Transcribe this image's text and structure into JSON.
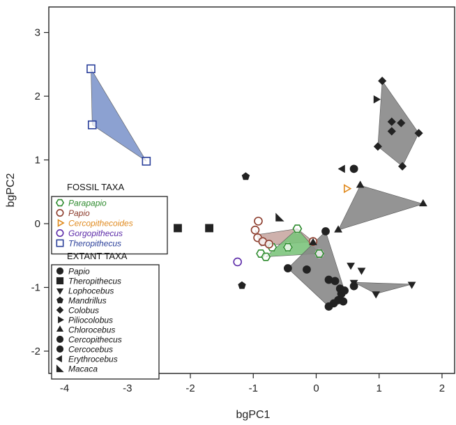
{
  "chart_data": {
    "type": "scatter",
    "xlabel": "bgPC1",
    "ylabel": "bgPC2",
    "xlim": [
      -4.25,
      2.2
    ],
    "ylim": [
      -2.35,
      3.4
    ],
    "xticks": [
      -4,
      -3,
      -2,
      -1,
      0,
      1,
      2
    ],
    "yticks": [
      -2,
      -1,
      0,
      1,
      2,
      3
    ],
    "grid": false,
    "legend_placement": "left",
    "legends": [
      {
        "title": "FOSSIL TAXA",
        "entries": [
          {
            "name": "Parapapio",
            "marker": "hexagon-open",
            "color": "#2e8b2e"
          },
          {
            "name": "Papio",
            "marker": "circle-open",
            "color": "#8b3a2a"
          },
          {
            "name": "Cercopithecoides",
            "marker": "triangle-right-open",
            "color": "#e08a1e"
          },
          {
            "name": "Gorgopithecus",
            "marker": "circle-open",
            "color": "#5b2aa8"
          },
          {
            "name": "Theropithecus",
            "marker": "square-open",
            "color": "#2a3f9a"
          }
        ]
      },
      {
        "title": "EXTANT TAXA",
        "entries": [
          {
            "name": "Papio",
            "marker": "circle",
            "color": "#222222"
          },
          {
            "name": "Theropithecus",
            "marker": "square",
            "color": "#222222"
          },
          {
            "name": "Lophocebus",
            "marker": "triangle-down",
            "color": "#222222"
          },
          {
            "name": "Mandrillus",
            "marker": "pentagon",
            "color": "#222222"
          },
          {
            "name": "Colobus",
            "marker": "diamond",
            "color": "#222222"
          },
          {
            "name": "Piliocolobus",
            "marker": "triangle-right",
            "color": "#222222"
          },
          {
            "name": "Chlorocebus",
            "marker": "triangle-up",
            "color": "#222222"
          },
          {
            "name": "Cercopithecus",
            "marker": "circle",
            "color": "#222222"
          },
          {
            "name": "Cercocebus",
            "marker": "circle",
            "color": "#222222"
          },
          {
            "name": "Erythrocebus",
            "marker": "triangle-left",
            "color": "#222222"
          },
          {
            "name": "Macaca",
            "marker": "triangle-corner",
            "color": "#222222"
          }
        ]
      }
    ],
    "hulls": [
      {
        "group": "Theropithecus (fossil)",
        "fill": "#7f97cc",
        "points": [
          [
            -3.58,
            2.43
          ],
          [
            -2.7,
            0.98
          ],
          [
            -3.56,
            1.55
          ]
        ]
      },
      {
        "group": "Papio (fossil)",
        "fill": "#c9a9a3",
        "points": [
          [
            -0.92,
            -0.17
          ],
          [
            -0.3,
            -0.08
          ],
          [
            -0.05,
            -0.28
          ],
          [
            -0.88,
            -0.35
          ],
          [
            -0.97,
            -0.1
          ]
        ]
      },
      {
        "group": "Parapapio (fossil)",
        "fill": "#7cc47c",
        "points": [
          [
            -0.8,
            -0.52
          ],
          [
            -0.3,
            -0.08
          ],
          [
            0.05,
            -0.47
          ]
        ]
      },
      {
        "group": "Colobus",
        "fill": "#888888",
        "points": [
          [
            1.05,
            2.24
          ],
          [
            1.63,
            1.42
          ],
          [
            1.37,
            0.9
          ],
          [
            0.98,
            1.21
          ]
        ]
      },
      {
        "group": "Chlorocebus",
        "fill": "#888888",
        "points": [
          [
            0.7,
            0.6
          ],
          [
            1.7,
            0.31
          ],
          [
            0.35,
            -0.1
          ]
        ]
      },
      {
        "group": "Cercopithecus",
        "fill": "#888888",
        "points": [
          [
            0.15,
            -0.12
          ],
          [
            0.45,
            -1.05
          ],
          [
            0.2,
            -1.3
          ],
          [
            -0.45,
            -0.7
          ]
        ]
      },
      {
        "group": "Lophocebus",
        "fill": "#888888",
        "points": [
          [
            0.6,
            -0.92
          ],
          [
            1.52,
            -0.95
          ],
          [
            0.95,
            -1.1
          ]
        ]
      }
    ],
    "series": [
      {
        "name": "Theropithecus",
        "group": "fossil",
        "marker": "square-open",
        "color": "#2a3f9a",
        "points": [
          [
            -3.58,
            2.43
          ],
          [
            -3.56,
            1.55
          ],
          [
            -2.7,
            0.98
          ]
        ]
      },
      {
        "name": "Parapapio",
        "group": "fossil",
        "marker": "hexagon-open",
        "color": "#2e8b2e",
        "points": [
          [
            -0.88,
            -0.47
          ],
          [
            -0.8,
            -0.52
          ],
          [
            -0.7,
            -0.37
          ],
          [
            -0.45,
            -0.37
          ],
          [
            -0.3,
            -0.08
          ],
          [
            0.05,
            -0.47
          ]
        ]
      },
      {
        "name": "Papio",
        "group": "fossil",
        "marker": "circle-open",
        "color": "#8b3a2a",
        "points": [
          [
            -0.92,
            0.04
          ],
          [
            -0.97,
            -0.1
          ],
          [
            -0.93,
            -0.22
          ],
          [
            -0.85,
            -0.28
          ],
          [
            -0.75,
            -0.32
          ],
          [
            -0.05,
            -0.28
          ]
        ]
      },
      {
        "name": "Cercopithecoides",
        "group": "fossil",
        "marker": "triangle-right-open",
        "color": "#e08a1e",
        "points": [
          [
            0.48,
            0.55
          ]
        ]
      },
      {
        "name": "Gorgopithecus",
        "group": "fossil",
        "marker": "circle-open",
        "color": "#5b2aa8",
        "points": [
          [
            -1.25,
            -0.6
          ]
        ]
      },
      {
        "name": "Theropithecus",
        "group": "extant",
        "marker": "square",
        "color": "#222222",
        "points": [
          [
            -2.2,
            -0.07
          ],
          [
            -1.7,
            -0.07
          ]
        ]
      },
      {
        "name": "Mandrillus",
        "group": "extant",
        "marker": "pentagon",
        "color": "#222222",
        "points": [
          [
            -1.12,
            0.74
          ],
          [
            -1.18,
            -0.97
          ]
        ]
      },
      {
        "name": "Colobus",
        "group": "extant",
        "marker": "diamond",
        "color": "#222222",
        "points": [
          [
            1.05,
            2.24
          ],
          [
            1.2,
            1.6
          ],
          [
            1.35,
            1.58
          ],
          [
            1.2,
            1.45
          ],
          [
            1.63,
            1.42
          ],
          [
            0.98,
            1.21
          ],
          [
            1.37,
            0.9
          ]
        ]
      },
      {
        "name": "Piliocolobus",
        "group": "extant",
        "marker": "triangle-right",
        "color": "#222222",
        "points": [
          [
            0.95,
            1.95
          ]
        ]
      },
      {
        "name": "Chlorocebus",
        "group": "extant",
        "marker": "triangle-up",
        "color": "#222222",
        "points": [
          [
            0.7,
            0.6
          ],
          [
            1.7,
            0.31
          ],
          [
            0.35,
            -0.1
          ],
          [
            -0.05,
            -0.3
          ]
        ]
      },
      {
        "name": "Erythrocebus",
        "group": "extant",
        "marker": "triangle-left",
        "color": "#222222",
        "points": [
          [
            0.42,
            0.86
          ]
        ]
      },
      {
        "name": "Macaca",
        "group": "extant",
        "marker": "triangle-corner",
        "color": "#222222",
        "points": [
          [
            -0.58,
            0.1
          ]
        ]
      },
      {
        "name": "Cercocebus",
        "group": "extant",
        "marker": "circle",
        "color": "#222222",
        "points": [
          [
            0.6,
            0.86
          ]
        ]
      },
      {
        "name": "Papio",
        "group": "extant",
        "marker": "circle",
        "color": "#222222",
        "points": [
          [
            -0.45,
            -0.7
          ],
          [
            0.2,
            -0.88
          ],
          [
            0.15,
            -0.12
          ],
          [
            0.3,
            -0.9
          ],
          [
            0.38,
            -1.02
          ],
          [
            0.4,
            -1.1
          ],
          [
            0.45,
            -1.05
          ],
          [
            0.35,
            -1.2
          ],
          [
            0.28,
            -1.25
          ],
          [
            0.2,
            -1.3
          ],
          [
            0.43,
            -1.22
          ],
          [
            -0.15,
            -0.72
          ],
          [
            0.6,
            -0.98
          ]
        ]
      },
      {
        "name": "Lophocebus",
        "group": "extant",
        "marker": "triangle-down",
        "color": "#222222",
        "points": [
          [
            0.6,
            -0.92
          ],
          [
            0.72,
            -0.73
          ],
          [
            0.95,
            -1.1
          ],
          [
            1.52,
            -0.95
          ],
          [
            0.55,
            -0.65
          ]
        ]
      }
    ]
  }
}
